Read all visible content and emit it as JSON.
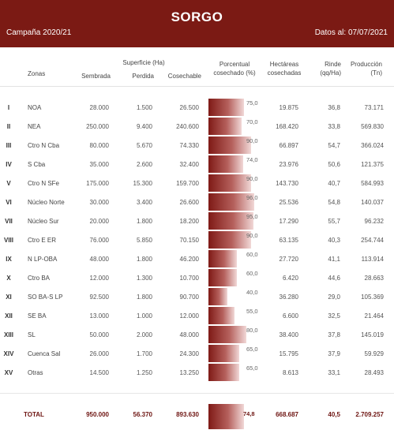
{
  "header": {
    "title": "SORGO",
    "campaign": "Campaña 2020/21",
    "date_label": "Datos al: 07/07/2021"
  },
  "columns": {
    "zonas": "Zonas",
    "superficie_group": "Superficie (Ha)",
    "sembrada": "Sembrada",
    "perdida": "Perdida",
    "cosechable": "Cosechable",
    "porcentual_1": "Porcentual",
    "porcentual_2": "cosechado (%)",
    "hectareas_1": "Hectáreas",
    "hectareas_2": "cosechadas",
    "rinde_1": "Rinde",
    "rinde_2": "(qq/Ha)",
    "produccion_1": "Producción",
    "produccion_2": "(Tn)"
  },
  "rows": [
    {
      "roman": "I",
      "zone": "NOA",
      "sembrada": "28.000",
      "perdida": "1.500",
      "cosechable": "26.500",
      "pct_label": "75,0",
      "pct": 75,
      "hectareas": "19.875",
      "rinde": "36,8",
      "produccion": "73.171"
    },
    {
      "roman": "II",
      "zone": "NEA",
      "sembrada": "250.000",
      "perdida": "9.400",
      "cosechable": "240.600",
      "pct_label": "70,0",
      "pct": 70,
      "hectareas": "168.420",
      "rinde": "33,8",
      "produccion": "569.830"
    },
    {
      "roman": "III",
      "zone": "Ctro N Cba",
      "sembrada": "80.000",
      "perdida": "5.670",
      "cosechable": "74.330",
      "pct_label": "90,0",
      "pct": 90,
      "hectareas": "66.897",
      "rinde": "54,7",
      "produccion": "366.024"
    },
    {
      "roman": "IV",
      "zone": "S Cba",
      "sembrada": "35.000",
      "perdida": "2.600",
      "cosechable": "32.400",
      "pct_label": "74,0",
      "pct": 74,
      "hectareas": "23.976",
      "rinde": "50,6",
      "produccion": "121.375"
    },
    {
      "roman": "V",
      "zone": "Ctro N SFe",
      "sembrada": "175.000",
      "perdida": "15.300",
      "cosechable": "159.700",
      "pct_label": "90,0",
      "pct": 90,
      "hectareas": "143.730",
      "rinde": "40,7",
      "produccion": "584.993"
    },
    {
      "roman": "VI",
      "zone": "Núcleo Norte",
      "sembrada": "30.000",
      "perdida": "3.400",
      "cosechable": "26.600",
      "pct_label": "96,0",
      "pct": 96,
      "hectareas": "25.536",
      "rinde": "54,8",
      "produccion": "140.037"
    },
    {
      "roman": "VII",
      "zone": "Núcleo Sur",
      "sembrada": "20.000",
      "perdida": "1.800",
      "cosechable": "18.200",
      "pct_label": "95,0",
      "pct": 95,
      "hectareas": "17.290",
      "rinde": "55,7",
      "produccion": "96.232"
    },
    {
      "roman": "VIII",
      "zone": "Ctro E ER",
      "sembrada": "76.000",
      "perdida": "5.850",
      "cosechable": "70.150",
      "pct_label": "90,0",
      "pct": 90,
      "hectareas": "63.135",
      "rinde": "40,3",
      "produccion": "254.744"
    },
    {
      "roman": "IX",
      "zone": "N LP-OBA",
      "sembrada": "48.000",
      "perdida": "1.800",
      "cosechable": "46.200",
      "pct_label": "60,0",
      "pct": 60,
      "hectareas": "27.720",
      "rinde": "41,1",
      "produccion": "113.914"
    },
    {
      "roman": "X",
      "zone": "Ctro BA",
      "sembrada": "12.000",
      "perdida": "1.300",
      "cosechable": "10.700",
      "pct_label": "60,0",
      "pct": 60,
      "hectareas": "6.420",
      "rinde": "44,6",
      "produccion": "28.663"
    },
    {
      "roman": "XI",
      "zone": "SO BA-S LP",
      "sembrada": "92.500",
      "perdida": "1.800",
      "cosechable": "90.700",
      "pct_label": "40,0",
      "pct": 40,
      "hectareas": "36.280",
      "rinde": "29,0",
      "produccion": "105.369"
    },
    {
      "roman": "XII",
      "zone": "SE BA",
      "sembrada": "13.000",
      "perdida": "1.000",
      "cosechable": "12.000",
      "pct_label": "55,0",
      "pct": 55,
      "hectareas": "6.600",
      "rinde": "32,5",
      "produccion": "21.464"
    },
    {
      "roman": "XIII",
      "zone": "SL",
      "sembrada": "50.000",
      "perdida": "2.000",
      "cosechable": "48.000",
      "pct_label": "80,0",
      "pct": 80,
      "hectareas": "38.400",
      "rinde": "37,8",
      "produccion": "145.019"
    },
    {
      "roman": "XIV",
      "zone": "Cuenca Sal",
      "sembrada": "26.000",
      "perdida": "1.700",
      "cosechable": "24.300",
      "pct_label": "65,0",
      "pct": 65,
      "hectareas": "15.795",
      "rinde": "37,9",
      "produccion": "59.929"
    },
    {
      "roman": "XV",
      "zone": "Otras",
      "sembrada": "14.500",
      "perdida": "1.250",
      "cosechable": "13.250",
      "pct_label": "65,0",
      "pct": 65,
      "hectareas": "8.613",
      "rinde": "33,1",
      "produccion": "28.493"
    }
  ],
  "total": {
    "label": "TOTAL",
    "sembrada": "950.000",
    "perdida": "56.370",
    "cosechable": "893.630",
    "pct_label": "74,8",
    "pct": 74.8,
    "hectareas": "668.687",
    "rinde": "40,5",
    "produccion": "2.709.257"
  },
  "colors": {
    "banner": "#7b1a14",
    "bar_dark": "#7f1a16",
    "bar_light": "#f1d8d7",
    "total_text": "#6e1512"
  }
}
